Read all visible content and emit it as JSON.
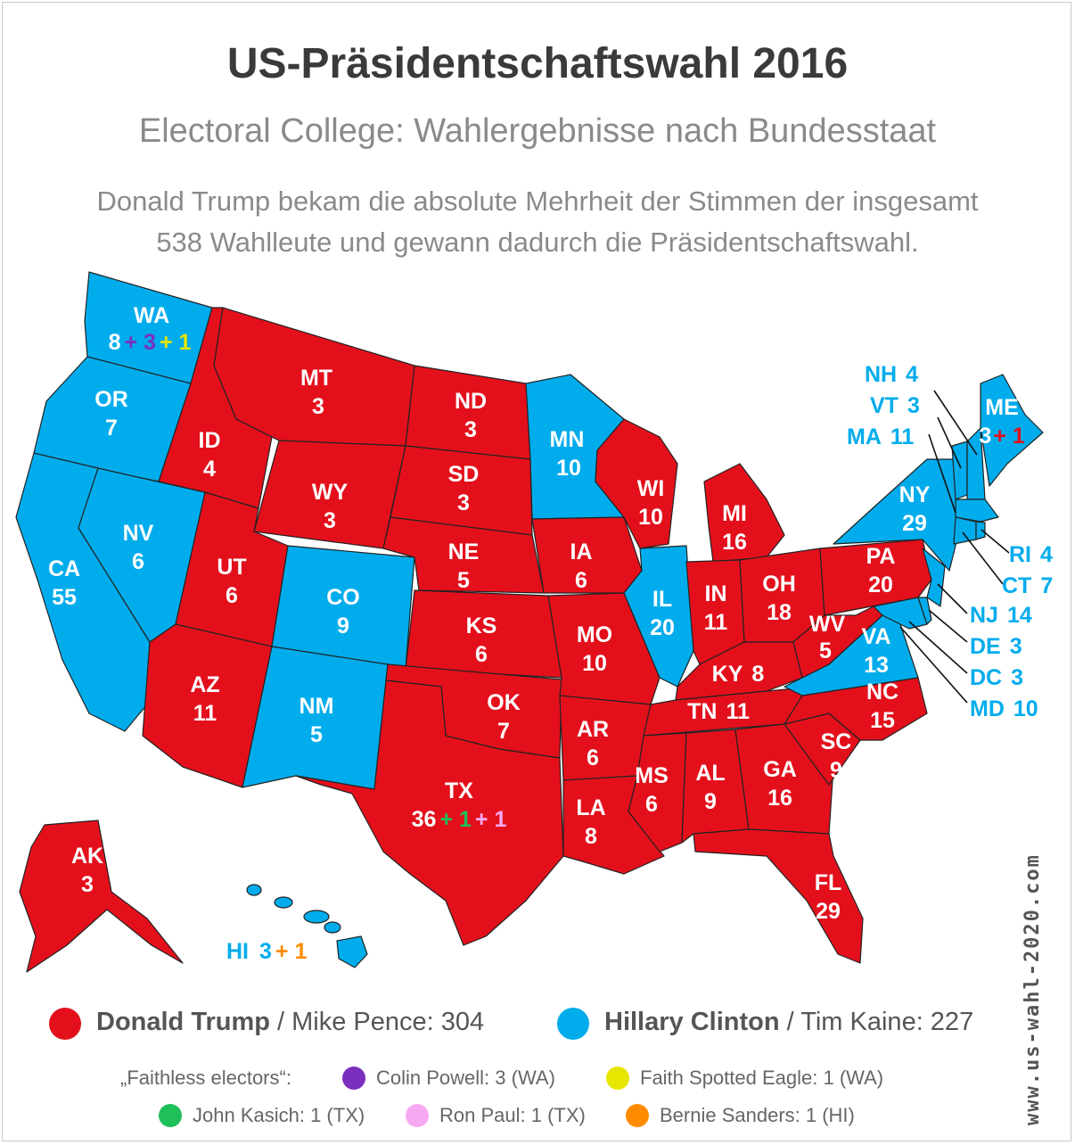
{
  "title": "US-Präsidentschaftswahl 2016",
  "subtitle": "Electoral College: Wahlergebnisse nach Bundesstaat",
  "description_line1": "Donald Trump bekam die absolute Mehrheit der Stimmen der insgesamt",
  "description_line2": "538 Wahlleute und gewann dadurch die Präsidentschaftswahl.",
  "colors": {
    "trump": "#e3101c",
    "clinton": "#00acec"
  },
  "states": {
    "WA": {
      "abbr": "WA",
      "votes": "8",
      "party": "clinton"
    },
    "OR": {
      "abbr": "OR",
      "votes": "7",
      "party": "clinton"
    },
    "CA": {
      "abbr": "CA",
      "votes": "55",
      "party": "clinton"
    },
    "NV": {
      "abbr": "NV",
      "votes": "6",
      "party": "clinton"
    },
    "ID": {
      "abbr": "ID",
      "votes": "4",
      "party": "trump"
    },
    "MT": {
      "abbr": "MT",
      "votes": "3",
      "party": "trump"
    },
    "WY": {
      "abbr": "WY",
      "votes": "3",
      "party": "trump"
    },
    "UT": {
      "abbr": "UT",
      "votes": "6",
      "party": "trump"
    },
    "AZ": {
      "abbr": "AZ",
      "votes": "11",
      "party": "trump"
    },
    "CO": {
      "abbr": "CO",
      "votes": "9",
      "party": "clinton"
    },
    "NM": {
      "abbr": "NM",
      "votes": "5",
      "party": "clinton"
    },
    "ND": {
      "abbr": "ND",
      "votes": "3",
      "party": "trump"
    },
    "SD": {
      "abbr": "SD",
      "votes": "3",
      "party": "trump"
    },
    "NE": {
      "abbr": "NE",
      "votes": "5",
      "party": "trump"
    },
    "KS": {
      "abbr": "KS",
      "votes": "6",
      "party": "trump"
    },
    "OK": {
      "abbr": "OK",
      "votes": "7",
      "party": "trump"
    },
    "TX": {
      "abbr": "TX",
      "votes": "36",
      "party": "trump"
    },
    "MN": {
      "abbr": "MN",
      "votes": "10",
      "party": "clinton"
    },
    "IA": {
      "abbr": "IA",
      "votes": "6",
      "party": "trump"
    },
    "MO": {
      "abbr": "MO",
      "votes": "10",
      "party": "trump"
    },
    "AR": {
      "abbr": "AR",
      "votes": "6",
      "party": "trump"
    },
    "LA": {
      "abbr": "LA",
      "votes": "8",
      "party": "trump"
    },
    "WI": {
      "abbr": "WI",
      "votes": "10",
      "party": "trump"
    },
    "IL": {
      "abbr": "IL",
      "votes": "20",
      "party": "clinton"
    },
    "MI": {
      "abbr": "MI",
      "votes": "16",
      "party": "trump"
    },
    "IN": {
      "abbr": "IN",
      "votes": "11",
      "party": "trump"
    },
    "OH": {
      "abbr": "OH",
      "votes": "18",
      "party": "trump"
    },
    "KY": {
      "abbr": "KY",
      "votes": "8",
      "party": "trump"
    },
    "TN": {
      "abbr": "TN",
      "votes": "11",
      "party": "trump"
    },
    "MS": {
      "abbr": "MS",
      "votes": "6",
      "party": "trump"
    },
    "AL": {
      "abbr": "AL",
      "votes": "9",
      "party": "trump"
    },
    "GA": {
      "abbr": "GA",
      "votes": "16",
      "party": "trump"
    },
    "FL": {
      "abbr": "FL",
      "votes": "29",
      "party": "trump"
    },
    "SC": {
      "abbr": "SC",
      "votes": "9",
      "party": "trump"
    },
    "NC": {
      "abbr": "NC",
      "votes": "15",
      "party": "trump"
    },
    "VA": {
      "abbr": "VA",
      "votes": "13",
      "party": "clinton"
    },
    "WV": {
      "abbr": "WV",
      "votes": "5",
      "party": "trump"
    },
    "PA": {
      "abbr": "PA",
      "votes": "20",
      "party": "trump"
    },
    "NY": {
      "abbr": "NY",
      "votes": "29",
      "party": "clinton"
    },
    "ME": {
      "abbr": "ME",
      "votes": "3",
      "party": "clinton"
    },
    "AK": {
      "abbr": "AK",
      "votes": "3",
      "party": "trump"
    },
    "HI": {
      "abbr": "HI",
      "votes": "3",
      "party": "clinton"
    },
    "NH": {
      "abbr": "NH",
      "votes": "4",
      "party": "clinton"
    },
    "VT": {
      "abbr": "VT",
      "votes": "3",
      "party": "clinton"
    },
    "MA": {
      "abbr": "MA",
      "votes": "11",
      "party": "clinton"
    },
    "RI": {
      "abbr": "RI",
      "votes": "4",
      "party": "clinton"
    },
    "CT": {
      "abbr": "CT",
      "votes": "7",
      "party": "clinton"
    },
    "NJ": {
      "abbr": "NJ",
      "votes": "14",
      "party": "clinton"
    },
    "DE": {
      "abbr": "DE",
      "votes": "3",
      "party": "clinton"
    },
    "DC": {
      "abbr": "DC",
      "votes": "3",
      "party": "clinton"
    },
    "MD": {
      "abbr": "MD",
      "votes": "10",
      "party": "clinton"
    }
  },
  "extras": {
    "WA_powell": "+ 3",
    "WA_eagle": "+ 1",
    "TX_kasich": "+ 1",
    "TX_paul": "+ 1",
    "HI_sanders": "+ 1",
    "ME_trump": "+ 1"
  },
  "legend": {
    "trump_name": "Donald Trump",
    "trump_rest": " / Mike Pence: 304",
    "clinton_name": "Hillary Clinton",
    "clinton_rest": " / Tim Kaine: 227",
    "faithless_label": "„Faithless electors“:",
    "powell": "Colin Powell: 3 (WA)",
    "eagle": "Faith Spotted Eagle: 1 (WA)",
    "kasich": "John Kasich: 1 (TX)",
    "paul": "Ron Paul: 1 (TX)",
    "sanders": "Bernie Sanders: 1 (HI)",
    "faithless_colors": {
      "powell": "#7b2fbe",
      "eagle": "#e6e600",
      "kasich": "#1fbf5a",
      "paul": "#f7a8f2",
      "sanders": "#ff8c00"
    }
  },
  "watermark": "www.us-wahl-2020.com"
}
